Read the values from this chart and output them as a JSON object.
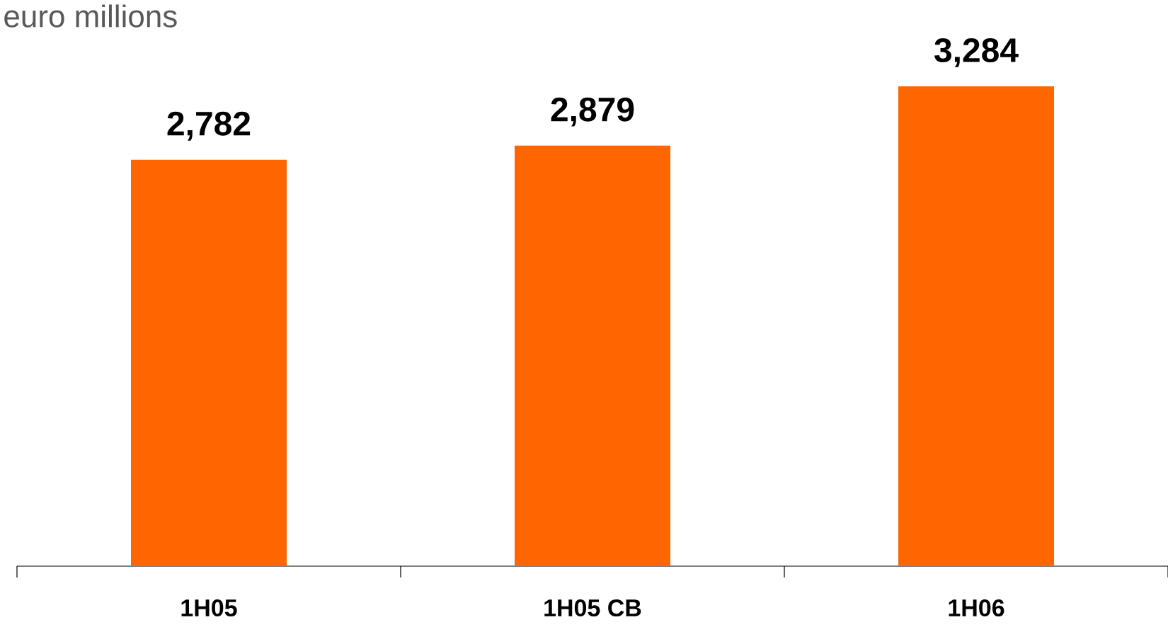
{
  "chart_data": {
    "type": "bar",
    "title": "euro millions",
    "categories": [
      "1H05",
      "1H05 CB",
      "1H06"
    ],
    "values": [
      2782,
      2879,
      3284
    ],
    "value_labels": [
      "2,782",
      "2,879",
      "3,284"
    ],
    "color": "#ff6600"
  }
}
